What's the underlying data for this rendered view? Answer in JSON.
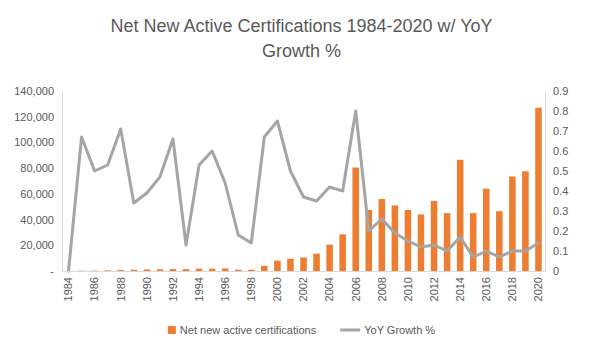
{
  "chart_data": {
    "type": "bar",
    "title": "Net New Active Certifications 1984-2020 w/ YoY Growth %",
    "categories": [
      "1984",
      null,
      "1986",
      null,
      "1988",
      null,
      "1990",
      null,
      "1992",
      null,
      "1994",
      null,
      "1996",
      null,
      "1998",
      null,
      "2000",
      null,
      "2002",
      null,
      "2004",
      null,
      "2006",
      null,
      "2008",
      null,
      "2010",
      null,
      "2012",
      null,
      "2014",
      null,
      "2016",
      null,
      "2018",
      null,
      "2020"
    ],
    "series": [
      {
        "name": "Net new active certifications",
        "type": "bar",
        "color": "#ed7d31",
        "values": [
          100,
          200,
          300,
          500,
          800,
          1000,
          1200,
          1300,
          1500,
          1500,
          1800,
          1800,
          2000,
          1000,
          1000,
          4000,
          8000,
          9500,
          10500,
          13500,
          20500,
          28500,
          80500,
          47500,
          56000,
          51000,
          47500,
          44000,
          54500,
          45000,
          86500,
          45000,
          64000,
          46500,
          73500,
          77500,
          127000
        ]
      },
      {
        "name": "YoY Growth %",
        "type": "line",
        "color": "#a5a5a5",
        "axis": "y2",
        "values": [
          0,
          0.67,
          0.5,
          0.53,
          0.71,
          0.34,
          0.39,
          0.47,
          0.66,
          0.13,
          0.53,
          0.6,
          0.44,
          0.18,
          0.14,
          0.67,
          0.75,
          0.5,
          0.37,
          0.35,
          0.42,
          0.4,
          0.8,
          0.2,
          0.26,
          0.19,
          0.15,
          0.12,
          0.13,
          0.1,
          0.17,
          0.07,
          0.1,
          0.07,
          0.1,
          0.1,
          0.14
        ]
      }
    ],
    "ylim": [
      0,
      140000
    ],
    "yticks": [
      {
        "value": 0,
        "label": "-"
      },
      {
        "value": 20000,
        "label": "20,000"
      },
      {
        "value": 40000,
        "label": "40,000"
      },
      {
        "value": 60000,
        "label": "60,000"
      },
      {
        "value": 80000,
        "label": "80,000"
      },
      {
        "value": 100000,
        "label": "100,000"
      },
      {
        "value": 120000,
        "label": "120,000"
      },
      {
        "value": 140000,
        "label": "140,000"
      }
    ],
    "y2lim": [
      0,
      0.9
    ],
    "y2ticks": [
      0,
      0.1,
      0.2,
      0.3,
      0.4,
      0.5,
      0.6,
      0.7,
      0.8,
      0.9
    ],
    "grid": false,
    "legend": "bottom"
  }
}
